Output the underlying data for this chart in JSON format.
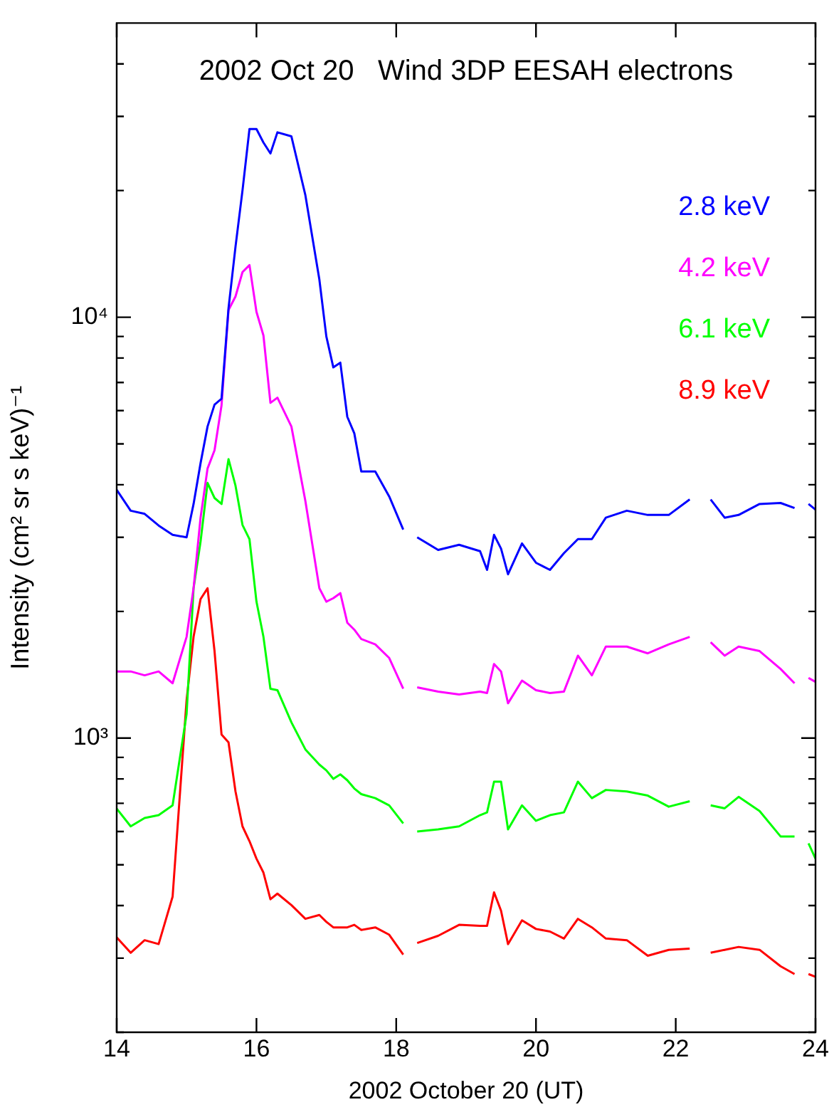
{
  "chart_data": {
    "type": "line",
    "title": "2002 Oct 20   Wind 3DP EESAH electrons",
    "xlabel": "2002 October 20 (UT)",
    "ylabel": "Intensity (cm² sr s keV)⁻¹",
    "x": [
      14.0,
      14.2,
      14.4,
      14.6,
      14.8,
      15.0,
      15.1,
      15.2,
      15.3,
      15.4,
      15.5,
      15.6,
      15.7,
      15.8,
      15.9,
      16.0,
      16.1,
      16.2,
      16.3,
      16.5,
      16.7,
      16.9,
      17.0,
      17.1,
      17.2,
      17.3,
      17.4,
      17.5,
      17.7,
      17.9,
      18.1,
      18.2,
      18.3,
      18.6,
      18.9,
      19.2,
      19.3,
      19.4,
      19.5,
      19.6,
      19.8,
      20.0,
      20.2,
      20.4,
      20.6,
      20.8,
      21.0,
      21.3,
      21.6,
      21.9,
      22.2,
      22.35,
      22.5,
      22.7,
      22.9,
      23.2,
      23.5,
      23.7,
      23.8,
      23.9,
      24.0
    ],
    "series": [
      {
        "name": "2.8 keV",
        "color": "#0000ff",
        "values": [
          3890,
          3470,
          3410,
          3200,
          3040,
          3000,
          3600,
          4500,
          5500,
          6200,
          6400,
          10500,
          14700,
          20000,
          28000,
          28000,
          26000,
          24500,
          27500,
          26900,
          19500,
          12300,
          9000,
          7600,
          7800,
          5800,
          5300,
          4300,
          4300,
          3750,
          3130,
          null,
          3000,
          2800,
          2880,
          2780,
          2510,
          3040,
          2820,
          2450,
          2900,
          2610,
          2510,
          2750,
          2970,
          2970,
          3340,
          3470,
          3390,
          3390,
          3690,
          null,
          3690,
          3340,
          3390,
          3600,
          3620,
          3520,
          null,
          3600,
          3490
        ]
      },
      {
        "name": "4.2 keV",
        "color": "#ff00ff",
        "values": [
          1440,
          1440,
          1410,
          1440,
          1350,
          1740,
          2270,
          3340,
          4370,
          4830,
          6170,
          10400,
          11200,
          12800,
          13300,
          10300,
          9050,
          6260,
          6440,
          5500,
          3660,
          2270,
          2110,
          2150,
          2210,
          1880,
          1810,
          1720,
          1670,
          1550,
          1310,
          null,
          1320,
          1290,
          1270,
          1290,
          1280,
          1500,
          1440,
          1210,
          1370,
          1300,
          1280,
          1290,
          1570,
          1410,
          1650,
          1650,
          1590,
          1670,
          1740,
          null,
          1690,
          1570,
          1650,
          1610,
          1460,
          1350,
          null,
          1390,
          1360
        ]
      },
      {
        "name": "6.1 keV",
        "color": "#00ff00",
        "values": [
          680,
          617,
          646,
          656,
          692,
          1140,
          2270,
          2930,
          4040,
          3720,
          3600,
          4600,
          3980,
          3210,
          2970,
          2110,
          1740,
          1310,
          1300,
          1090,
          940,
          865,
          838,
          800,
          820,
          794,
          759,
          736,
          720,
          692,
          627,
          null,
          600,
          607,
          617,
          656,
          666,
          788,
          788,
          607,
          692,
          636,
          656,
          666,
          788,
          720,
          753,
          747,
          730,
          687,
          708,
          null,
          692,
          681,
          725,
          671,
          584,
          584,
          null,
          562,
          517
        ]
      },
      {
        "name": "8.9 keV",
        "color": "#ff0000",
        "values": [
          336,
          309,
          331,
          324,
          420,
          1230,
          1740,
          2140,
          2270,
          1610,
          1020,
          977,
          747,
          617,
          569,
          517,
          479,
          414,
          427,
          401,
          372,
          380,
          366,
          355,
          355,
          355,
          360,
          350,
          355,
          341,
          306,
          null,
          326,
          339,
          360,
          358,
          358,
          430,
          389,
          324,
          369,
          352,
          347,
          334,
          372,
          355,
          334,
          331,
          304,
          314,
          316,
          null,
          309,
          314,
          319,
          314,
          287,
          275,
          null,
          275,
          271
        ]
      }
    ],
    "xlim": [
      14,
      24
    ],
    "xticks": [
      14,
      16,
      18,
      20,
      22,
      24
    ],
    "ylim": [
      200,
      50000
    ],
    "log": true,
    "yticks": [
      {
        "value": 200,
        "label": null
      },
      {
        "value": 300,
        "label": null
      },
      {
        "value": 400,
        "label": null
      },
      {
        "value": 500,
        "label": null
      },
      {
        "value": 600,
        "label": null
      },
      {
        "value": 700,
        "label": null
      },
      {
        "value": 800,
        "label": null
      },
      {
        "value": 900,
        "label": null
      },
      {
        "value": 1000,
        "label": "10³"
      },
      {
        "value": 2000,
        "label": null
      },
      {
        "value": 3000,
        "label": null
      },
      {
        "value": 4000,
        "label": null
      },
      {
        "value": 5000,
        "label": null
      },
      {
        "value": 6000,
        "label": null
      },
      {
        "value": 7000,
        "label": null
      },
      {
        "value": 8000,
        "label": null
      },
      {
        "value": 9000,
        "label": null
      },
      {
        "value": 10000,
        "label": "10⁴"
      },
      {
        "value": 20000,
        "label": null
      },
      {
        "value": 30000,
        "label": null
      },
      {
        "value": 40000,
        "label": null
      }
    ],
    "grid": false,
    "legend": "top right",
    "marker": "none",
    "line_style": "solid"
  }
}
